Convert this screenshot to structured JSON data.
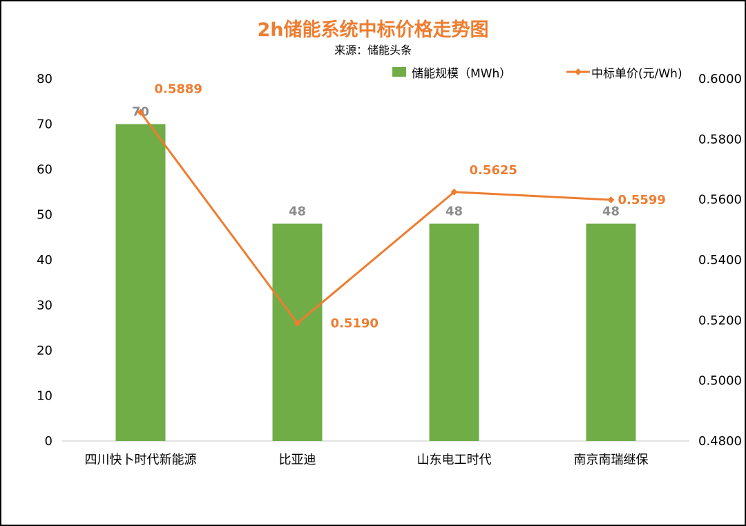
{
  "chart_data": {
    "type": "bar",
    "title": "2h储能系统中标价格走势图",
    "subtitle": "来源：储能头条",
    "categories": [
      "四川快卜时代新能源",
      "比亚迪",
      "山东电工时代",
      "南京南瑞继保"
    ],
    "series": [
      {
        "name": "储能规模（MWh）",
        "type": "bar",
        "axis": "left",
        "values": [
          70,
          48,
          48,
          48
        ],
        "color": "#70AD47",
        "label_color": "#8C8C8C"
      },
      {
        "name": "中标单价(元/Wh)",
        "type": "line",
        "axis": "right",
        "values": [
          0.5889,
          0.519,
          0.5625,
          0.5599
        ],
        "labels": [
          "0.5889",
          "0.5190",
          "0.5625",
          "0.5599"
        ],
        "color": "#ED7D31"
      }
    ],
    "y_left": {
      "min": 0,
      "max": 80,
      "ticks": [
        "0",
        "10",
        "20",
        "30",
        "40",
        "50",
        "60",
        "70",
        "80"
      ]
    },
    "y_right": {
      "min": 0.48,
      "max": 0.6,
      "ticks": [
        "0.4800",
        "0.5000",
        "0.5200",
        "0.5400",
        "0.5600",
        "0.5800",
        "0.6000"
      ]
    },
    "legend_position": "top-right",
    "title_color": "#ED7D31",
    "grid": false
  }
}
